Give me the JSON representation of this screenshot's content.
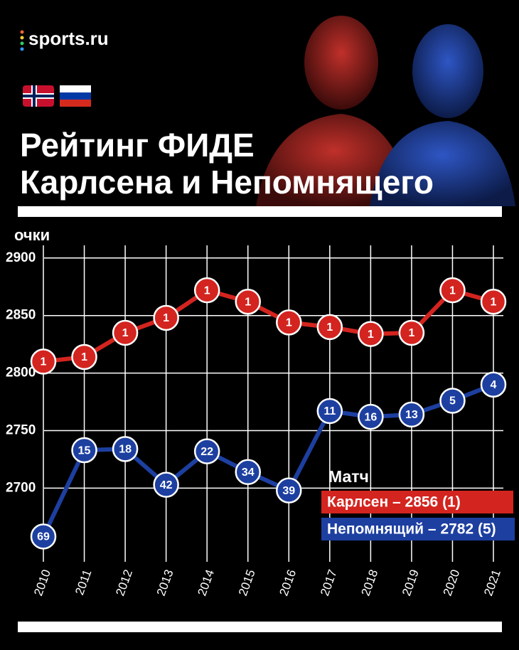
{
  "brand": "sports.ru",
  "chart_data": {
    "type": "line",
    "title": [
      "Рейтинг ФИДЕ",
      "Карлсена и Непомнящего"
    ],
    "y_label": "очки",
    "legend_title": "Матч",
    "categories": [
      "2010",
      "2011",
      "2012",
      "2013",
      "2014",
      "2015",
      "2016",
      "2017",
      "2018",
      "2019",
      "2020",
      "2021"
    ],
    "series": [
      {
        "name": "Карлсен – 2856 (1)",
        "color": "#d3241f",
        "values": [
          2810,
          2814,
          2835,
          2848,
          2872,
          2862,
          2844,
          2840,
          2834,
          2835,
          2872,
          2862
        ],
        "ranks": [
          1,
          1,
          1,
          1,
          1,
          1,
          1,
          1,
          1,
          1,
          1,
          1
        ]
      },
      {
        "name": "Непомнящий – 2782 (5)",
        "color": "#1d3fa0",
        "values": [
          2658,
          2733,
          2734,
          2703,
          2732,
          2714,
          2698,
          2767,
          2762,
          2764,
          2776,
          2790
        ],
        "ranks": [
          69,
          15,
          18,
          42,
          22,
          34,
          39,
          11,
          16,
          13,
          5,
          4
        ]
      }
    ],
    "ylim": [
      2636,
      2911
    ],
    "yticks": [
      2700,
      2750,
      2800,
      2850,
      2900
    ],
    "grid": true
  }
}
